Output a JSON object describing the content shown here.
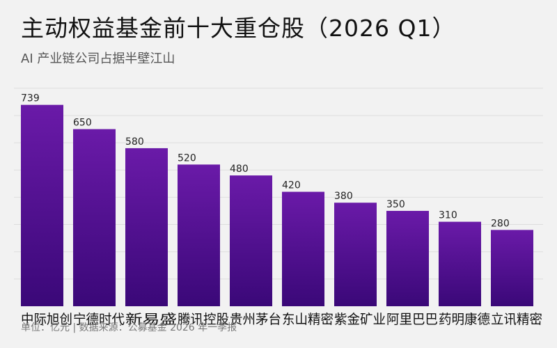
{
  "header": {
    "title": "主动权益基金前十大重仓股（2026 Q1）",
    "subtitle": "AI 产业链公司占据半壁江山"
  },
  "footnote": "单位：亿元 | 数据来源：公募基金 2026 年一季报",
  "colors": {
    "bar_top": "#6a1aa8",
    "bar_bottom": "#3a0878",
    "grid": "#dddddd",
    "background": "#f2f2f2"
  },
  "chart_data": {
    "type": "bar",
    "categories": [
      "中际旭创",
      "宁德时代",
      "新易盛",
      "腾讯控股",
      "贵州茅台",
      "东山精密",
      "紫金矿业",
      "阿里巴巴",
      "药明康德",
      "立讯精密"
    ],
    "values": [
      739,
      650,
      580,
      520,
      480,
      420,
      380,
      350,
      310,
      280
    ],
    "ylim": [
      0,
      800
    ],
    "grid": true,
    "data_labels": true
  }
}
